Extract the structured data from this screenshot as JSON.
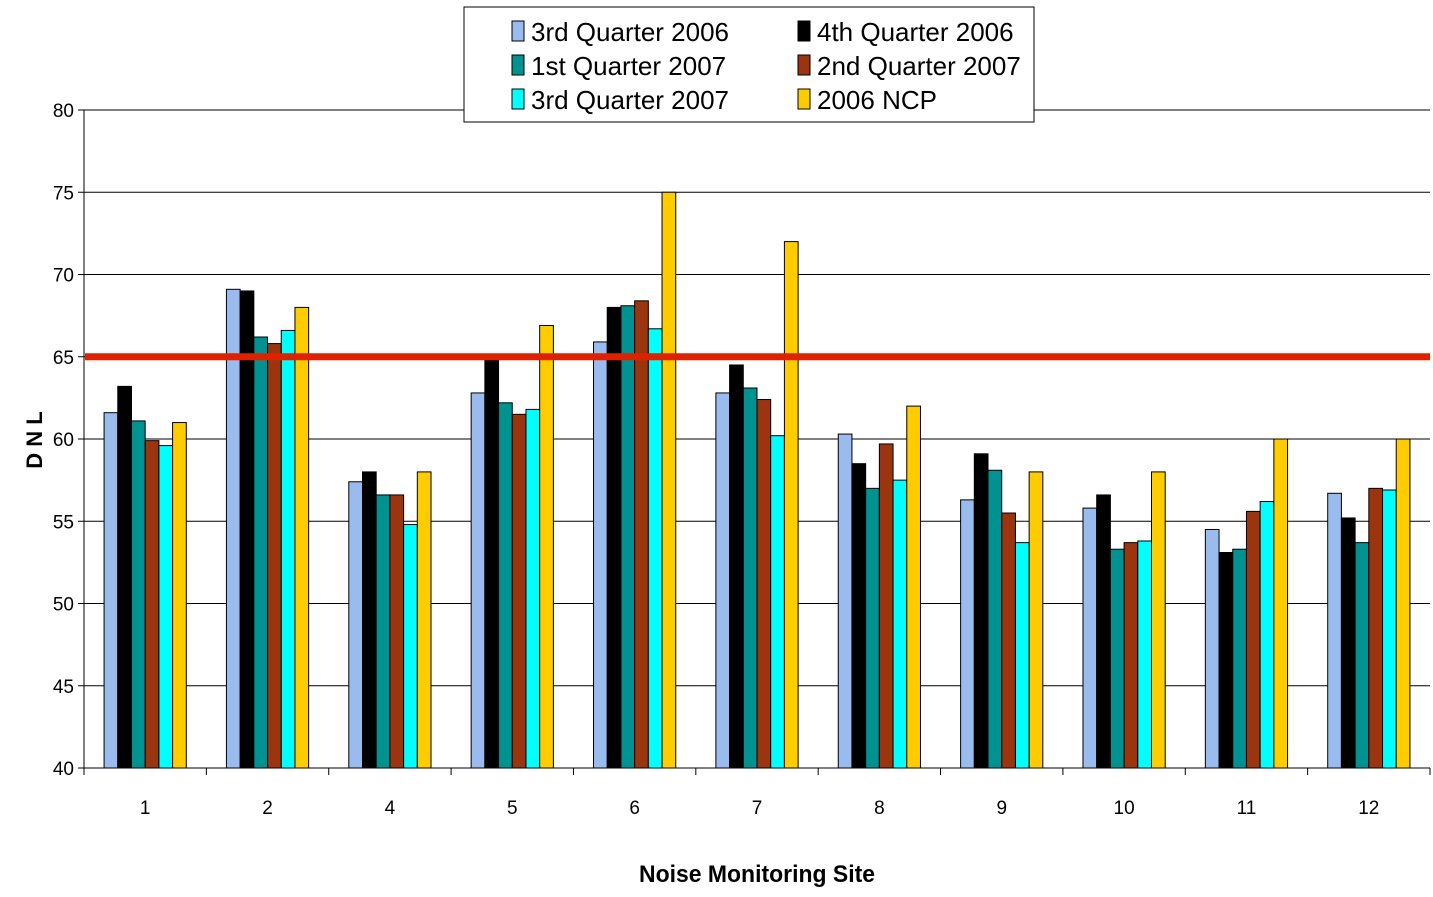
{
  "chart_data": {
    "type": "bar",
    "title": "",
    "xlabel": "Noise Monitoring Site",
    "ylabel": "D N L",
    "ylim": [
      40,
      80
    ],
    "yticks": [
      40,
      45,
      50,
      55,
      60,
      65,
      70,
      75,
      80
    ],
    "grid": true,
    "legend_position": "top-center",
    "categories": [
      "1",
      "2",
      "4",
      "5",
      "6",
      "7",
      "8",
      "9",
      "10",
      "11",
      "12"
    ],
    "series": [
      {
        "name": "3rd Quarter 2006",
        "color": "#99bbee",
        "values": [
          61.6,
          69.1,
          57.4,
          62.8,
          65.9,
          62.8,
          60.3,
          56.3,
          55.8,
          54.5,
          56.7
        ]
      },
      {
        "name": "4th Quarter 2006",
        "color": "#000000",
        "values": [
          63.2,
          69.0,
          58.0,
          64.9,
          68.0,
          64.5,
          58.5,
          59.1,
          56.6,
          53.1,
          55.2
        ]
      },
      {
        "name": "1st Quarter 2007",
        "color": "#009191",
        "values": [
          61.1,
          66.2,
          56.6,
          62.2,
          68.1,
          63.1,
          57.0,
          58.1,
          53.3,
          53.3,
          53.7
        ]
      },
      {
        "name": "2nd Quarter 2007",
        "color": "#9a3510",
        "values": [
          59.9,
          65.8,
          56.6,
          61.5,
          68.4,
          62.4,
          59.7,
          55.5,
          53.7,
          55.6,
          57.0
        ]
      },
      {
        "name": "3rd Quarter 2007",
        "color": "#00ffff",
        "values": [
          59.6,
          66.6,
          54.8,
          61.8,
          66.7,
          60.2,
          57.5,
          53.7,
          53.8,
          56.2,
          56.9
        ]
      },
      {
        "name": "2006 NCP",
        "color": "#ffcc00",
        "values": [
          61.0,
          68.0,
          58.0,
          66.9,
          75.0,
          72.0,
          62.0,
          58.0,
          58.0,
          60.0,
          60.0
        ]
      }
    ],
    "reference_line": {
      "value": 65,
      "color": "#dd2200"
    }
  }
}
